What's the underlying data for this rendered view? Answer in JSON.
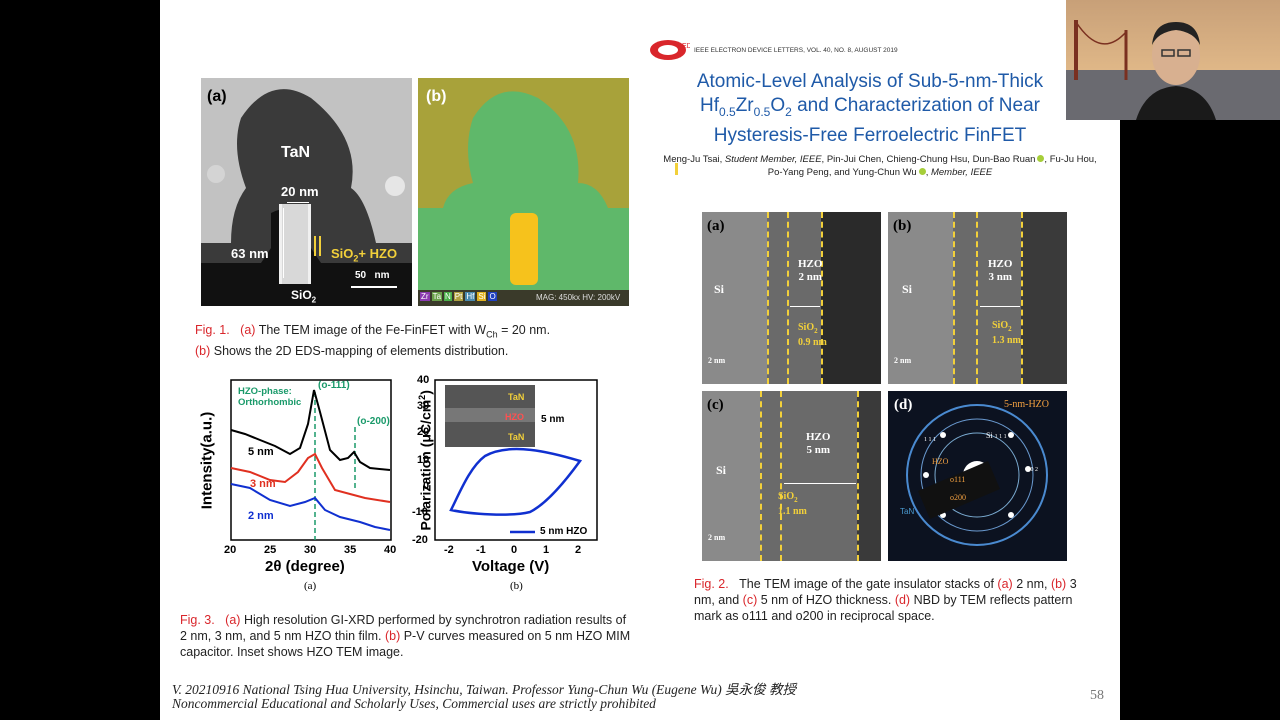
{
  "fig1": {
    "panel_a": {
      "label": "(a)",
      "tan": "TaN",
      "width": "20 nm",
      "height": "63 nm",
      "stack": "SiO",
      "stack_sub": "2",
      "stack_tail": "+ HZO",
      "scale": "50   nm",
      "sio2": "SiO",
      "sio2_sub": "2"
    },
    "panel_b": {
      "label": "(b)",
      "legend": [
        "Zr",
        "Ta",
        "N",
        "Pt",
        "Hf",
        "Si",
        "O"
      ],
      "mag": "MAG: 450kx  HV: 200kV"
    },
    "caption": {
      "fig": "Fig. 1.",
      "a": "(a)",
      "text_a": "The TEM image of the Fe-FinFET with W",
      "sub": "Ch",
      "text_a2": " = 20 nm.",
      "b": "(b)",
      "text_b": "Shows the 2D EDS-mapping of elements distribution."
    }
  },
  "fig3": {
    "xrd": {
      "ylabel": "Intensity(a.u.)",
      "xlabel": "2θ (degree)",
      "phase1": "HZO-phase:",
      "phase2": "Orthorhombic",
      "peak1": "(o-111)",
      "peak2": "(o-200)",
      "ticks": [
        "20",
        "25",
        "30",
        "35",
        "40"
      ],
      "sub": "(a)"
    },
    "pv": {
      "ylabel": "Polarization (μC/cm",
      "ylabel_sup": "2",
      "ylabel_tail": ")",
      "xlabel": "Voltage (V)",
      "yticks": [
        "40",
        "30",
        "20",
        "10",
        "0",
        "-10",
        "-20"
      ],
      "xticks": [
        "-2",
        "-1",
        "0",
        "1",
        "2"
      ],
      "legend": "5 nm HZO",
      "inset_tan_top": "TaN",
      "inset_hzo": "HZO",
      "inset_tan_bot": "TaN",
      "inset_scale": "5 nm",
      "sub": "(b)"
    },
    "caption": {
      "fig": "Fig. 3.",
      "a": "(a)",
      "text_a": "High resolution GI-XRD performed by synchrotron radiation results of 2 nm, 3 nm, and 5 nm HZO thin film.",
      "b": "(b)",
      "text_b": "P-V curves measured on 5 nm HZO MIM capacitor. Inset shows HZO TEM image."
    }
  },
  "paper": {
    "journal": "IEEE ELECTRON DEVICE LETTERS, VOL. 40, NO. 8, AUGUST 2019",
    "title_l1": "Atomic-Level Analysis of Sub-5-nm-Thick",
    "title_l2_a": "Hf",
    "title_l2_s1": "0.5",
    "title_l2_b": "Zr",
    "title_l2_s2": "0.5",
    "title_l2_c": "O",
    "title_l2_s3": "2",
    "title_l2_d": " and Characterization of Near",
    "title_l3": "Hysteresis-Free Ferroelectric FinFET",
    "authors_l1a": "Meng-Ju Tsai, ",
    "authors_l1b": "Student Member, IEEE",
    "authors_l1c": ", Pin-Jui Chen, Chieng-Chung Hsu, Dun-Bao Ruan",
    ", Fu-Ju Hou,": "",
    "authors_l1d": ", Fu-Ju Hou,",
    "authors_l2a": "Po-Yang Peng, and Yung-Chun Wu",
    "authors_l2b": ", ",
    "authors_l2c": "Member, IEEE"
  },
  "fig2": {
    "a": {
      "label": "(a)",
      "si": "Si",
      "hzo": "HZO",
      "hzo_t": "2 nm",
      "sio2": "SiO",
      "sub": "2",
      "sio2_t": "0.9 nm",
      "scale": "2 nm"
    },
    "b": {
      "label": "(b)",
      "si": "Si",
      "hzo": "HZO",
      "hzo_t": "3 nm",
      "sio2": "SiO",
      "sub": "2",
      "sio2_t": "1.3 nm",
      "scale": "2 nm"
    },
    "c": {
      "label": "(c)",
      "si": "Si",
      "hzo": "HZO",
      "hzo_t": "5 nm",
      "sio2": "SiO",
      "sub": "2",
      "sio2_t": "1.1 nm",
      "scale": "2 nm"
    },
    "d": {
      "label": "(d)",
      "title": "5-nm-HZO",
      "si": "Si",
      "si_idx": "1 1 1",
      "hzo_idx": "1 1 1",
      "idx002": "0 0 2",
      "hzo": "HZO",
      "o111": "o111",
      "o200": "o200",
      "tan": "TaN"
    },
    "caption": {
      "fig": "Fig. 2.",
      "t1": "The TEM image of the gate insulator stacks of",
      "a": "(a)",
      "t2": "2 nm,",
      "b": "(b)",
      "t3": "3 nm, and",
      "c": "(c)",
      "t4": "5 nm of HZO thickness.",
      "d": "(d)",
      "t5": "NBD by TEM reflects pattern mark as o111 and o200 in reciprocal space."
    }
  },
  "footer": {
    "line1": "V. 20210916 National Tsing Hua University, Hsinchu, Taiwan. Professor Yung-Chun Wu (Eugene Wu) 吳永俊 教授",
    "line2": "Noncommercial Educational and Scholarly Uses, Commercial uses are strictly prohibited",
    "page": "58"
  },
  "colors": {
    "accent_red": "#d9262b",
    "title_blue": "#1f5aa8",
    "hzo_yellow": "#f2d03a"
  }
}
